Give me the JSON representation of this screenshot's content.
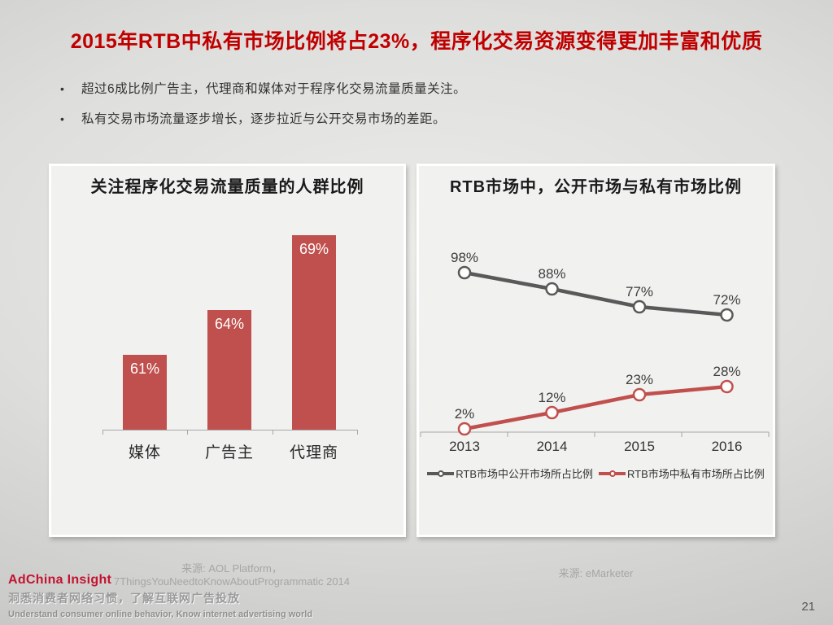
{
  "slide": {
    "title": "2015年RTB中私有市场比例将占23%，程序化交易资源变得更加丰富和优质",
    "bullets": [
      "超过6成比例广告主，代理商和媒体对于程序化交易流量质量关注。",
      "私有交易市场流量逐步增长，逐步拉近与公开交易市场的差距。"
    ],
    "page_number": "21"
  },
  "colors": {
    "title_red": "#C00000",
    "chart_red": "#C0504D",
    "chart_gray": "#595959",
    "axis_gray": "#A8A8A8",
    "panel_bg": "#F1F1F0",
    "logo_red": "#C41230"
  },
  "left_card": {
    "source_line1": "来源: AOL Platform，",
    "source_line2": "7ThingsYouNeedtoKnowAboutProgrammatic 2014"
  },
  "right_card": {
    "source": "来源: eMarketer"
  },
  "footer": {
    "logo": "AdChina Insight",
    "tagline_cn": "洞悉消费者网络习惯，了解互联网广告投放",
    "tagline_en": "Understand consumer online behavior, Know internet advertising world"
  },
  "chart_data": [
    {
      "type": "bar",
      "title": "关注程序化交易流量质量的人群比例",
      "categories": [
        "媒体",
        "广告主",
        "代理商"
      ],
      "values": [
        61,
        64,
        69
      ],
      "unit": "%",
      "xlabel": "",
      "ylabel": "",
      "ylim": [
        56,
        72
      ],
      "grid": false,
      "legend": "none",
      "bar_color": "#C0504D",
      "data_label_color": "#FFFFFF"
    },
    {
      "type": "line",
      "title": "RTB市场中，公开市场与私有市场比例",
      "x": [
        "2013",
        "2014",
        "2015",
        "2016"
      ],
      "series": [
        {
          "name": "RTB市场中公开市场所占比例",
          "values": [
            98,
            88,
            77,
            72
          ],
          "color": "#595959"
        },
        {
          "name": "RTB市场中私有市场所占比例",
          "values": [
            2,
            12,
            23,
            28
          ],
          "color": "#C0504D"
        }
      ],
      "unit": "%",
      "xlabel": "",
      "ylabel": "",
      "ylim": [
        0,
        100
      ],
      "grid": false,
      "legend_position": "bottom",
      "marker": "open-circle"
    }
  ]
}
